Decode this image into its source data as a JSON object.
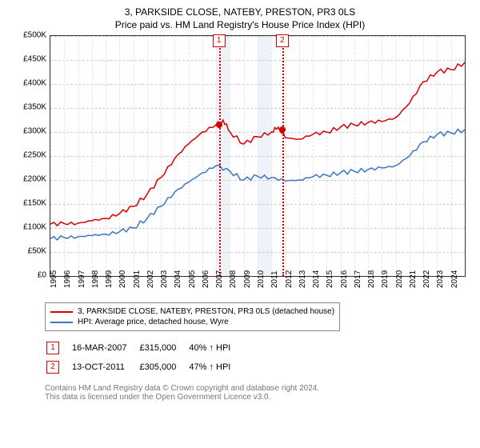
{
  "title": "3, PARKSIDE CLOSE, NATEBY, PRESTON, PR3 0LS",
  "subtitle": "Price paid vs. HM Land Registry's House Price Index (HPI)",
  "chart": {
    "type": "line",
    "background_color": "#ffffff",
    "grid_color": "#cccccc",
    "plot_border_color": "#333333",
    "band_color": "#eef2f9",
    "y": {
      "min": 0,
      "max": 500000,
      "ticks": [
        0,
        50000,
        100000,
        150000,
        200000,
        250000,
        300000,
        350000,
        400000,
        450000,
        500000
      ],
      "labels": [
        "£0",
        "£50K",
        "£100K",
        "£150K",
        "£200K",
        "£250K",
        "£300K",
        "£350K",
        "£400K",
        "£450K",
        "£500K"
      ],
      "fontsize": 10
    },
    "x": {
      "min": 1995,
      "max": 2025,
      "ticks": [
        1995,
        1996,
        1997,
        1998,
        1999,
        2000,
        2001,
        2002,
        2003,
        2004,
        2005,
        2006,
        2007,
        2008,
        2009,
        2010,
        2011,
        2012,
        2013,
        2014,
        2015,
        2016,
        2017,
        2018,
        2019,
        2020,
        2021,
        2022,
        2023,
        2024
      ],
      "fontsize": 10
    },
    "series": [
      {
        "name": "property",
        "label": "3, PARKSIDE CLOSE, NATEBY, PRESTON, PR3 0LS (detached house)",
        "color": "#d60000",
        "line_width": 1.5,
        "data": [
          [
            1995,
            108000
          ],
          [
            1996,
            109000
          ],
          [
            1997,
            110000
          ],
          [
            1998,
            115000
          ],
          [
            1999,
            120000
          ],
          [
            2000,
            130000
          ],
          [
            2001,
            145000
          ],
          [
            2002,
            170000
          ],
          [
            2003,
            205000
          ],
          [
            2004,
            245000
          ],
          [
            2005,
            275000
          ],
          [
            2006,
            300000
          ],
          [
            2007,
            315000
          ],
          [
            2007.5,
            325000
          ],
          [
            2008,
            300000
          ],
          [
            2009,
            275000
          ],
          [
            2010,
            290000
          ],
          [
            2011,
            300000
          ],
          [
            2011.5,
            310000
          ],
          [
            2012,
            288000
          ],
          [
            2013,
            285000
          ],
          [
            2014,
            295000
          ],
          [
            2015,
            300000
          ],
          [
            2016,
            310000
          ],
          [
            2017,
            315000
          ],
          [
            2018,
            320000
          ],
          [
            2019,
            322000
          ],
          [
            2020,
            330000
          ],
          [
            2021,
            360000
          ],
          [
            2022,
            405000
          ],
          [
            2023,
            425000
          ],
          [
            2024,
            430000
          ],
          [
            2025,
            445000
          ]
        ]
      },
      {
        "name": "hpi",
        "label": "HPI: Average price, detached house, Wyre",
        "color": "#3a76c4",
        "line_width": 1.5,
        "data": [
          [
            1995,
            78000
          ],
          [
            1996,
            80000
          ],
          [
            1997,
            82000
          ],
          [
            1998,
            84000
          ],
          [
            1999,
            87000
          ],
          [
            2000,
            92000
          ],
          [
            2001,
            100000
          ],
          [
            2002,
            120000
          ],
          [
            2003,
            145000
          ],
          [
            2004,
            175000
          ],
          [
            2005,
            195000
          ],
          [
            2006,
            215000
          ],
          [
            2007,
            230000
          ],
          [
            2008,
            218000
          ],
          [
            2009,
            200000
          ],
          [
            2010,
            208000
          ],
          [
            2011,
            205000
          ],
          [
            2012,
            198000
          ],
          [
            2013,
            200000
          ],
          [
            2014,
            207000
          ],
          [
            2015,
            210000
          ],
          [
            2016,
            215000
          ],
          [
            2017,
            218000
          ],
          [
            2018,
            222000
          ],
          [
            2019,
            225000
          ],
          [
            2020,
            230000
          ],
          [
            2021,
            250000
          ],
          [
            2022,
            280000
          ],
          [
            2023,
            295000
          ],
          [
            2024,
            298000
          ],
          [
            2025,
            305000
          ]
        ]
      }
    ],
    "bands": [
      {
        "from": 2007,
        "to": 2008
      },
      {
        "from": 2010,
        "to": 2011
      }
    ],
    "markers": [
      {
        "x": 2007.2,
        "y": 315000,
        "color": "#d60000"
      },
      {
        "x": 2011.78,
        "y": 305000,
        "color": "#d60000"
      }
    ],
    "event_lines": [
      {
        "x": 2007.2,
        "color": "#d60000",
        "label": "1"
      },
      {
        "x": 2011.78,
        "color": "#d60000",
        "label": "2"
      }
    ]
  },
  "legend": {
    "items": [
      {
        "color": "#d60000",
        "text": "3, PARKSIDE CLOSE, NATEBY, PRESTON, PR3 0LS (detached house)"
      },
      {
        "color": "#3a76c4",
        "text": "HPI: Average price, detached house, Wyre"
      }
    ]
  },
  "events": [
    {
      "badge": "1",
      "color": "#d60000",
      "date": "16-MAR-2007",
      "price": "£315,000",
      "delta": "40% ↑ HPI"
    },
    {
      "badge": "2",
      "color": "#d60000",
      "date": "13-OCT-2011",
      "price": "£305,000",
      "delta": "47% ↑ HPI"
    }
  ],
  "footer": {
    "line1": "Contains HM Land Registry data © Crown copyright and database right 2024.",
    "line2": "This data is licensed under the Open Government Licence v3.0."
  }
}
